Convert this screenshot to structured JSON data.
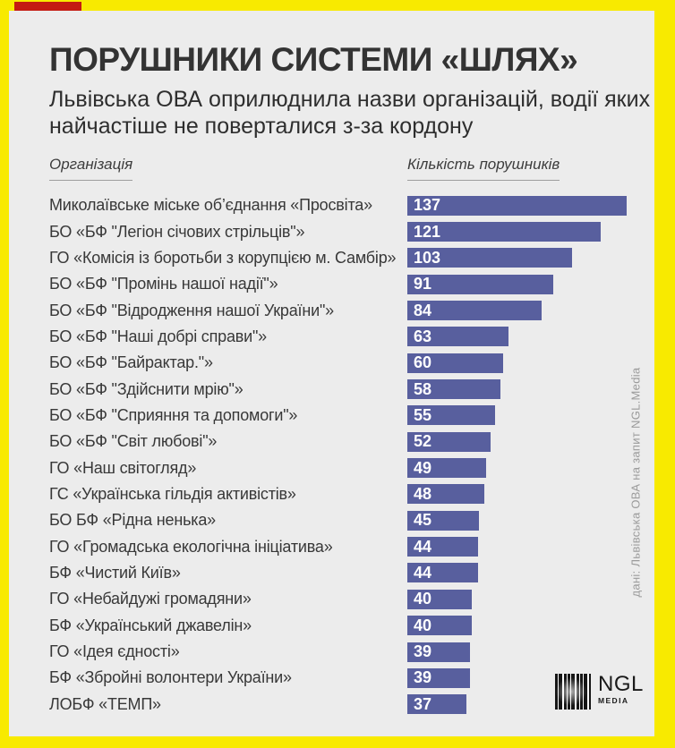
{
  "colors": {
    "frame": "#f8ea00",
    "background": "#ececec",
    "bar": "#585f9e",
    "accent": "#c41a12",
    "value_text": "#ffffff"
  },
  "header": {
    "title": "ПОРУШНИКИ СИСТЕМИ «ШЛЯХ»",
    "subtitle": "Львівська ОВА оприлюднила назви організацій, водії яких найчастіше не поверталися з-за кордону"
  },
  "chart_data": {
    "type": "bar",
    "orientation": "horizontal",
    "column_headers": {
      "organization": "Організація",
      "count": "Кількість порушників"
    },
    "categories": [
      "Миколаївське міське об’єднання «Просвіта»",
      "БО «БФ \"Легіон січових стрільців\"»",
      "ГО «Комісія із боротьби з корупцією м. Самбір»",
      "БО «БФ \"Промінь нашої надії\"»",
      "БО «БФ \"Відродження нашої України\"»",
      "БО «БФ \"Наші добрі справи\"»",
      "БО «БФ \"Байрактар.\"»",
      "БО «БФ \"Здійснити мрію\"»",
      "БО «БФ \"Сприяння та допомоги\"»",
      "БО «БФ \"Світ любові\"»",
      "ГО «Наш світогляд»",
      "ГС «Українська гільдія активістів»",
      "БО БФ «Рідна ненька»",
      "ГО «Громадська екологічна ініціатива»",
      "БФ «Чистий Київ»",
      "ГО «Небайдужі громадяни»",
      "БФ «Український джавелін»",
      "ГО «Ідея єдності»",
      "БФ «Зброй­ні волонтери України»",
      "ЛОБФ «ТЕМП»"
    ],
    "values": [
      137,
      121,
      103,
      91,
      84,
      63,
      60,
      58,
      55,
      52,
      49,
      48,
      45,
      44,
      44,
      40,
      40,
      39,
      39,
      37
    ],
    "xlim": [
      0,
      137
    ],
    "value_labels": "inside-left",
    "grid": false,
    "legend": false
  },
  "source_note": "дані:  Львівська ОВА на запит NGL.Media",
  "logo": {
    "name": "NGL",
    "subtitle": "MEDIA"
  }
}
